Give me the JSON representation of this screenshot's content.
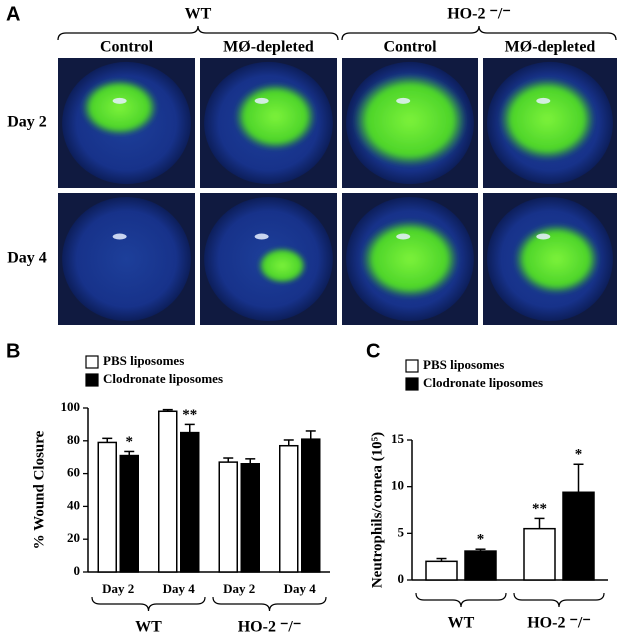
{
  "panel_a": {
    "label": "A",
    "groups": [
      "WT",
      "HO-2 ⁻/⁻"
    ],
    "columns": [
      "Control",
      "MØ-depleted",
      "Control",
      "MØ-depleted"
    ],
    "rows": [
      "Day 2",
      "Day 4"
    ]
  },
  "chart_data": [
    {
      "type": "bar",
      "panel": "B",
      "y_label": "% Wound Closure",
      "categories": [
        "Day 2",
        "Day 4",
        "Day 2",
        "Day 4"
      ],
      "group_labels": [
        "WT",
        "HO-2 ⁻/⁻"
      ],
      "ylim": [
        0,
        100
      ],
      "yticks": [
        0,
        20,
        40,
        60,
        80,
        100
      ],
      "series": [
        {
          "name": "PBS liposomes",
          "color": "#ffffff",
          "values": [
            79,
            98,
            67,
            77
          ],
          "errors": [
            2.5,
            1,
            2.5,
            3.5
          ],
          "significance": [
            null,
            null,
            null,
            null
          ]
        },
        {
          "name": "Clodronate liposomes",
          "color": "#000000",
          "values": [
            71,
            85,
            66,
            81
          ],
          "errors": [
            2.5,
            5,
            3,
            5
          ],
          "significance": [
            "*",
            "**",
            null,
            null
          ]
        }
      ]
    },
    {
      "type": "bar",
      "panel": "C",
      "y_label": "Neutrophils/cornea (10⁵)",
      "categories": [
        "WT",
        "HO-2 ⁻/⁻"
      ],
      "ylim": [
        0,
        15
      ],
      "yticks": [
        0,
        5,
        10,
        15
      ],
      "series": [
        {
          "name": "PBS liposomes",
          "color": "#ffffff",
          "values": [
            2.0,
            5.5
          ],
          "errors": [
            0.3,
            1.1
          ],
          "significance": [
            null,
            "**"
          ]
        },
        {
          "name": "Clodronate liposomes",
          "color": "#000000",
          "values": [
            3.1,
            9.4
          ],
          "errors": [
            0.2,
            3.0
          ],
          "significance": [
            "*",
            "*"
          ]
        }
      ]
    }
  ]
}
